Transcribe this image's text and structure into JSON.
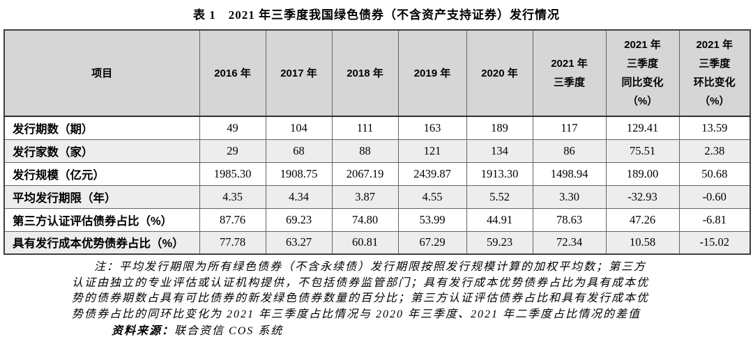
{
  "title": "表 1　2021 年三季度我国绿色债券（不含资产支持证券）发行情况",
  "table": {
    "columns": [
      "项目",
      "2016 年",
      "2017 年",
      "2018 年",
      "2019 年",
      "2020 年",
      "2021 年\n三季度",
      "2021 年\n三季度\n同比变化\n（%）",
      "2021 年\n三季度\n环比变化\n（%）"
    ],
    "rows": [
      {
        "label": "发行期数（期）",
        "values": [
          "49",
          "104",
          "111",
          "163",
          "189",
          "117",
          "129.41",
          "13.59"
        ]
      },
      {
        "label": "发行家数（家）",
        "values": [
          "29",
          "68",
          "88",
          "121",
          "134",
          "86",
          "75.51",
          "2.38"
        ]
      },
      {
        "label": "发行规模（亿元）",
        "values": [
          "1985.30",
          "1908.75",
          "2067.19",
          "2439.87",
          "1913.30",
          "1498.94",
          "189.00",
          "50.68"
        ]
      },
      {
        "label": "平均发行期限（年）",
        "values": [
          "4.35",
          "4.34",
          "3.87",
          "4.55",
          "5.52",
          "3.30",
          "-32.93",
          "-0.60"
        ]
      },
      {
        "label": "第三方认证评估债券占比（%）",
        "values": [
          "87.76",
          "69.23",
          "74.80",
          "53.99",
          "44.91",
          "78.63",
          "47.26",
          "-6.81"
        ]
      },
      {
        "label": "具有发行成本优势债券占比（%）",
        "values": [
          "77.78",
          "63.27",
          "60.81",
          "67.29",
          "59.23",
          "72.34",
          "10.58",
          "-15.02"
        ]
      }
    ]
  },
  "notes": {
    "text": "注：平均发行期限为所有绿色债券（不含永续债）发行期限按照发行规模计算的加权平均数；第三方\n认证由独立的专业评估或认证机构提供，不包括债券监管部门；具有发行成本优势债券占比为具有成本优\n势的债券期数占具有可比债券的新发绿色债券数量的百分比；第三方认证评估债券占比和具有发行成本优\n势债券占比的同环比变化为 2021 年三季度占比情况与 2020 年三季度、2021 年二季度占比情况的差值",
    "source_label": "资料来源：",
    "source_value": "联合资信 COS 系统"
  },
  "colors": {
    "header_bg": "#d6d6d6",
    "stripe_bg": "#ededed",
    "border": "#636363",
    "outer_border": "#3f3f3f"
  }
}
